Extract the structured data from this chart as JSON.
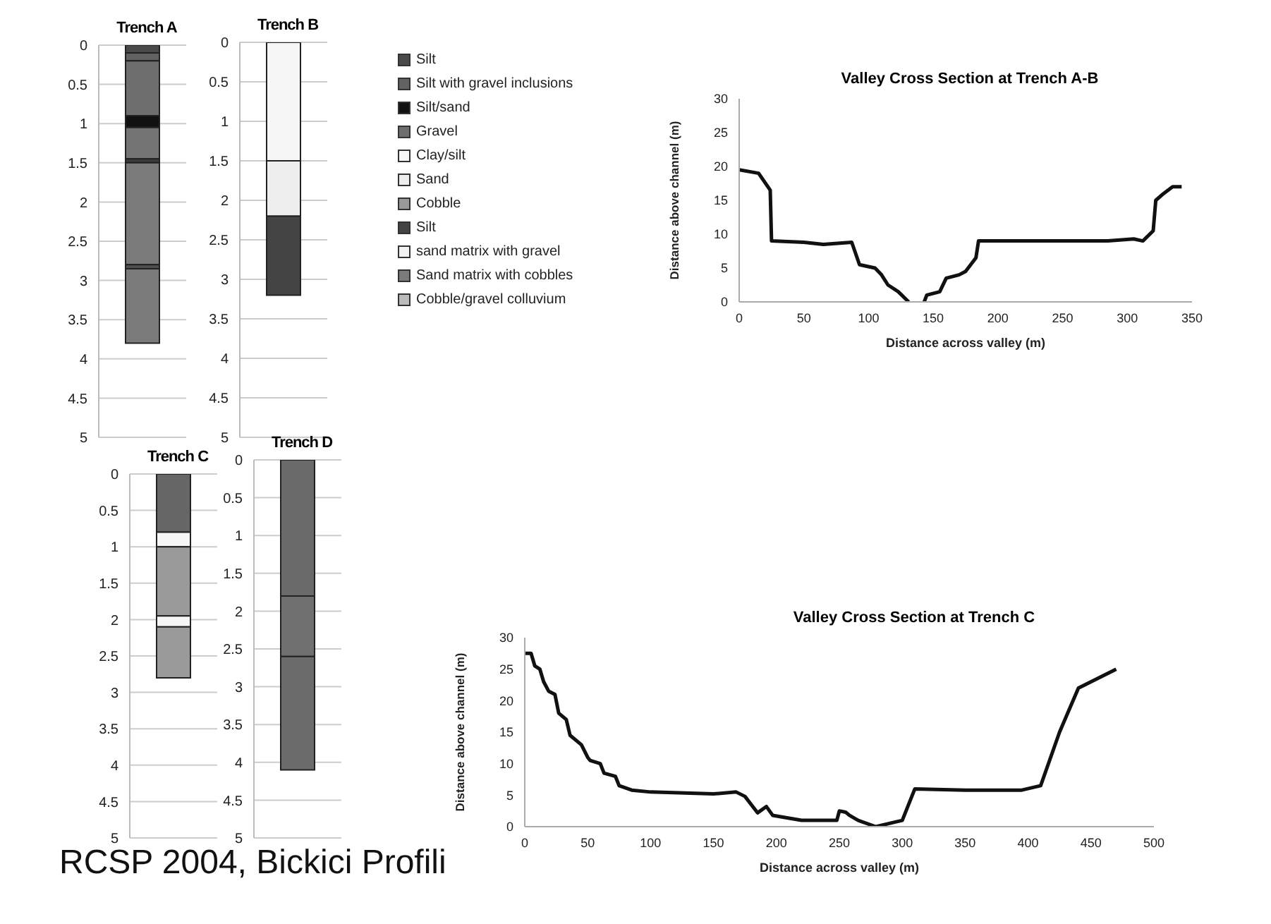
{
  "chart_data": [
    {
      "type": "bar",
      "title": "Trench A",
      "categories": [
        null
      ],
      "stacked": true,
      "ylim": [
        5,
        0
      ],
      "yticks": [
        0,
        0.5,
        1,
        1.5,
        2,
        2.5,
        3,
        3.5,
        4,
        4.5,
        5
      ],
      "grid": "y",
      "tick_labels": "y",
      "series": [
        {
          "color": "#4a4a4a",
          "values": [
            0.1
          ]
        },
        {
          "color": "#626262",
          "values": [
            0.1
          ]
        },
        {
          "color": "#6e6e6e",
          "values": [
            0.7
          ]
        },
        {
          "color": "#111111",
          "values": [
            0.15
          ]
        },
        {
          "color": "#747474",
          "values": [
            0.4
          ]
        },
        {
          "color": "#3a3a3a",
          "values": [
            0.05
          ]
        },
        {
          "color": "#7a7a7a",
          "values": [
            1.3
          ]
        },
        {
          "color": "#505050",
          "values": [
            0.05
          ]
        },
        {
          "color": "#7a7a7a",
          "values": [
            0.95
          ]
        }
      ]
    },
    {
      "type": "bar",
      "title": "Trench B",
      "categories": [
        null
      ],
      "stacked": true,
      "ylim": [
        5,
        0
      ],
      "yticks": [
        0,
        0.5,
        1,
        1.5,
        2,
        2.5,
        3,
        3.5,
        4,
        4.5,
        5
      ],
      "grid": "y",
      "tick_labels": "y",
      "series": [
        {
          "color": "#f6f6f6",
          "values": [
            1.5
          ]
        },
        {
          "color": "#eeeeee",
          "values": [
            0.7
          ]
        },
        {
          "color": "#444444",
          "values": [
            1.0
          ]
        }
      ]
    },
    {
      "type": "other",
      "categories": [
        "Silt",
        "Silt with gravel inclusions",
        "Silt/sand",
        "Gravel",
        "Clay/silt",
        "Sand",
        "Cobble",
        "Silt",
        "sand matrix with gravel",
        "Sand matrix with cobbles",
        "Cobble/gravel colluvium"
      ],
      "colors": [
        "#4a4a4a",
        "#626262",
        "#111111",
        "#6e6e6e",
        "#f6f6f6",
        "#eeeeee",
        "#999999",
        "#444444",
        "#f2f2f2",
        "#7a7a7a",
        "#bbbbbb"
      ]
    },
    {
      "type": "line",
      "title": "Valley Cross Section at Trench A-B",
      "xlabel": "Distance across valley (m)",
      "ylabel": "Distance above channel (m)",
      "xlim": [
        0,
        350
      ],
      "xticks": [
        0,
        50,
        100,
        150,
        200,
        250,
        300,
        350
      ],
      "ylim": [
        0,
        30
      ],
      "yticks": [
        0,
        5,
        10,
        15,
        20,
        25,
        30
      ],
      "grid": false,
      "marker": "none",
      "line_style": "solid",
      "x": [
        0,
        15,
        24,
        25,
        50,
        65,
        87,
        93,
        105,
        110,
        115,
        123,
        131,
        137,
        143,
        145,
        155,
        160,
        170,
        175,
        183,
        185,
        250,
        285,
        305,
        312,
        320,
        322,
        328,
        335,
        342
      ],
      "series": [
        {
          "color": "#111111",
          "values": [
            19.5,
            19,
            16.5,
            9,
            8.8,
            8.5,
            8.8,
            5.5,
            5,
            4,
            2.5,
            1.5,
            0,
            null,
            0,
            1,
            1.5,
            3.5,
            4,
            4.5,
            6.5,
            9,
            9,
            9,
            9.3,
            9,
            10.5,
            15,
            16,
            17,
            17
          ]
        }
      ]
    },
    {
      "type": "bar",
      "title": "Trench C",
      "categories": [
        null
      ],
      "stacked": true,
      "ylim": [
        5,
        0
      ],
      "yticks": [
        0,
        0.5,
        1,
        1.5,
        2,
        2.5,
        3,
        3.5,
        4,
        4.5,
        5
      ],
      "grid": "y",
      "tick_labels": "y",
      "series": [
        {
          "color": "#666666",
          "values": [
            0.8
          ]
        },
        {
          "color": "#f6f6f6",
          "values": [
            0.2
          ]
        },
        {
          "color": "#9a9a9a",
          "values": [
            0.95
          ]
        },
        {
          "color": "#f6f6f6",
          "values": [
            0.15
          ]
        },
        {
          "color": "#9a9a9a",
          "values": [
            0.7
          ]
        }
      ]
    },
    {
      "type": "bar",
      "title": "Trench D",
      "categories": [
        null
      ],
      "stacked": true,
      "ylim": [
        5,
        0
      ],
      "yticks": [
        0,
        0.5,
        1,
        1.5,
        2,
        2.5,
        3,
        3.5,
        4,
        4.5,
        5
      ],
      "grid": "y",
      "tick_labels": "y",
      "series": [
        {
          "color": "#6a6a6a",
          "values": [
            1.8
          ]
        },
        {
          "color": "#707070",
          "values": [
            0.8
          ]
        },
        {
          "color": "#6c6c6c",
          "values": [
            1.5
          ]
        }
      ]
    },
    {
      "type": "line",
      "title": "Valley Cross Section at Trench C",
      "xlabel": "Distance across valley (m)",
      "ylabel": "Distance above channel (m)",
      "xlim": [
        0,
        500
      ],
      "xticks": [
        0,
        50,
        100,
        150,
        200,
        250,
        300,
        350,
        400,
        450,
        500
      ],
      "ylim": [
        0,
        30
      ],
      "yticks": [
        0,
        5,
        10,
        15,
        20,
        25,
        30
      ],
      "grid": false,
      "marker": "none",
      "line_style": "solid",
      "x": [
        0,
        5,
        8,
        12,
        15,
        19,
        24,
        27,
        33,
        36,
        45,
        50,
        52,
        60,
        63,
        72,
        75,
        85,
        100,
        150,
        168,
        175,
        180,
        185,
        192,
        197,
        220,
        248,
        250,
        255,
        258,
        265,
        279,
        300,
        310,
        350,
        395,
        410,
        425,
        440,
        470
      ],
      "series": [
        {
          "color": "#111111",
          "values": [
            27.5,
            27.5,
            25.5,
            25,
            23,
            21.5,
            21,
            18,
            17,
            14.5,
            13,
            11,
            10.5,
            10,
            8.5,
            8,
            6.5,
            5.8,
            5.5,
            5.2,
            5.5,
            4.8,
            3.5,
            2.2,
            3.2,
            1.8,
            1,
            1,
            2.5,
            2.3,
            1.8,
            1,
            0,
            1,
            6,
            5.8,
            5.8,
            6.5,
            15,
            22,
            25
          ]
        }
      ]
    },
    {
      "type": "other",
      "title": "RCSP 2004, Bickici Profili"
    }
  ]
}
